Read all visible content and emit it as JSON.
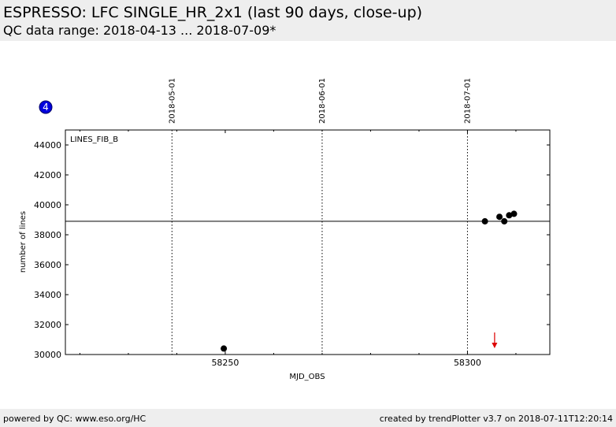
{
  "header": {
    "title": "ESPRESSO: LFC SINGLE_HR_2x1 (last 90 days, close-up)",
    "subtitle": "QC data range: 2018-04-13 ... 2018-07-09*"
  },
  "badge": {
    "text": "4",
    "color": "#0000dd"
  },
  "footer": {
    "left": "powered by QC: www.eso.org/HC",
    "right": "created by trendPlotter v3.7 on 2018-07-11T12:20:14"
  },
  "chart_data": {
    "type": "scatter",
    "panel_label": "LINES_FIB_B",
    "xlabel": "MJD_OBS",
    "ylabel": "number of lines",
    "xlim": [
      58217,
      58317
    ],
    "ylim": [
      30000,
      45000
    ],
    "x_ticks": [
      58250,
      58300
    ],
    "y_ticks": [
      30000,
      32000,
      34000,
      36000,
      38000,
      40000,
      42000,
      44000
    ],
    "date_markers": [
      {
        "label": "2018-05-01",
        "x": 58239
      },
      {
        "label": "2018-06-01",
        "x": 58270
      },
      {
        "label": "2018-07-01",
        "x": 58300
      }
    ],
    "reference_line": 38900,
    "series": [
      {
        "x": [
          58249.7,
          58303.6,
          58306.6,
          58307.6,
          58308.6,
          58309.6
        ],
        "y": [
          30400,
          38900,
          39200,
          38900,
          39300,
          39400
        ]
      }
    ],
    "point_color": "#000000",
    "out_of_range_arrow": {
      "x": 58305.6,
      "direction": "down",
      "color": "#dd0000"
    }
  }
}
